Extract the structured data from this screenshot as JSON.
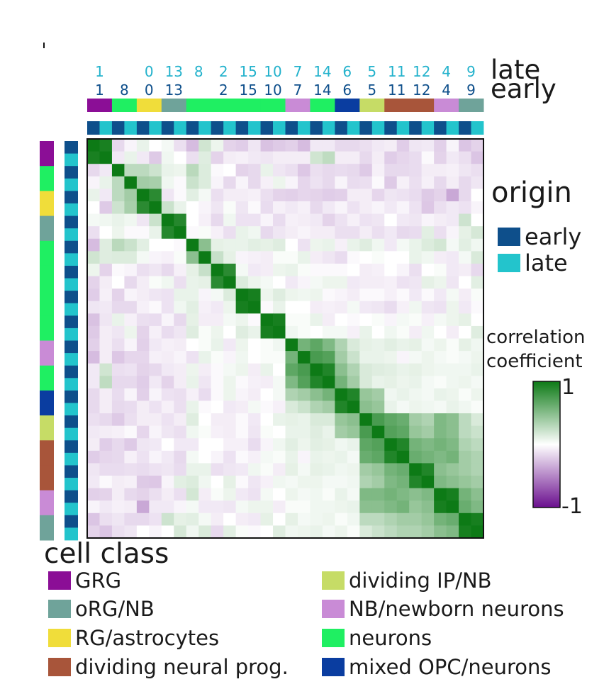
{
  "chart_data": {
    "type": "heatmap",
    "row_label_late": "late",
    "row_label_early": "early",
    "columns": [
      {
        "late": "1",
        "early": "1",
        "cell_class": "GRG"
      },
      {
        "late": "",
        "early": "8",
        "cell_class": "neurons"
      },
      {
        "late": "0",
        "early": "0",
        "cell_class": "RG/astrocytes"
      },
      {
        "late": "13",
        "early": "13",
        "cell_class": "oRG/NB"
      },
      {
        "late": "8",
        "early": "",
        "cell_class": "neurons"
      },
      {
        "late": "2",
        "early": "2",
        "cell_class": "neurons"
      },
      {
        "late": "15",
        "early": "15",
        "cell_class": "neurons"
      },
      {
        "late": "10",
        "early": "10",
        "cell_class": "neurons"
      },
      {
        "late": "7",
        "early": "7",
        "cell_class": "NB/newborn neurons"
      },
      {
        "late": "14",
        "early": "14",
        "cell_class": "neurons"
      },
      {
        "late": "6",
        "early": "6",
        "cell_class": "mixed OPC/neurons"
      },
      {
        "late": "5",
        "early": "5",
        "cell_class": "dividing IP/NB"
      },
      {
        "late": "11",
        "early": "11",
        "cell_class": "dividing neural prog."
      },
      {
        "late": "12",
        "early": "12",
        "cell_class": "dividing neural prog."
      },
      {
        "late": "4",
        "early": "4",
        "cell_class": "NB/newborn neurons"
      },
      {
        "late": "9",
        "early": "9",
        "cell_class": "oRG/NB"
      }
    ],
    "origin_order": [
      "early",
      "late"
    ],
    "value_range": [
      -1,
      1
    ],
    "values": [
      [
        1.0,
        0.94,
        -0.1,
        -0.02,
        0.05,
        0.0,
        0.02,
        -0.08,
        -0.2,
        0.13,
        0.04,
        -0.12,
        -0.14,
        -0.06,
        -0.18,
        -0.15,
        -0.13,
        -0.2,
        -0.05,
        -0.05,
        -0.1,
        -0.1,
        -0.08,
        -0.05,
        -0.04,
        -0.14,
        -0.06,
        -0.05,
        -0.13,
        -0.02,
        -0.17,
        -0.12
      ],
      [
        0.94,
        1.0,
        -0.05,
        0.05,
        -0.05,
        -0.15,
        0.03,
        0.0,
        -0.08,
        0.08,
        -0.12,
        -0.04,
        -0.03,
        -0.05,
        -0.06,
        -0.04,
        -0.04,
        -0.04,
        0.13,
        0.19,
        -0.04,
        -0.04,
        -0.1,
        -0.04,
        -0.14,
        -0.11,
        -0.09,
        -0.01,
        -0.12,
        -0.05,
        -0.08,
        -0.17
      ],
      [
        -0.1,
        -0.05,
        1.0,
        0.2,
        0.2,
        0.14,
        0.05,
        0.04,
        0.21,
        0.09,
        -0.01,
        0.0,
        -0.12,
        -0.1,
        0.05,
        -0.06,
        -0.08,
        -0.16,
        -0.08,
        -0.1,
        -0.09,
        -0.1,
        -0.15,
        -0.03,
        -0.1,
        -0.1,
        -0.09,
        -0.04,
        -0.04,
        -0.03,
        -0.06,
        -0.08
      ],
      [
        -0.02,
        0.05,
        0.2,
        1.0,
        0.3,
        0.28,
        0.03,
        -0.01,
        0.15,
        0.09,
        -0.02,
        -0.1,
        -0.02,
        -0.1,
        -0.03,
        0.04,
        -0.02,
        -0.11,
        -0.07,
        -0.1,
        -0.02,
        -0.09,
        -0.08,
        -0.01,
        -0.15,
        -0.03,
        -0.08,
        -0.03,
        -0.1,
        -0.04,
        -0.1,
        -0.06
      ],
      [
        0.05,
        -0.05,
        0.2,
        0.3,
        1.0,
        0.85,
        -0.06,
        -0.01,
        0.07,
        0.02,
        -0.08,
        -0.04,
        -0.04,
        -0.03,
        -0.08,
        -0.12,
        -0.13,
        -0.11,
        -0.12,
        -0.14,
        -0.13,
        -0.04,
        -0.04,
        -0.11,
        -0.06,
        -0.07,
        -0.09,
        -0.15,
        -0.12,
        -0.28,
        -0.1,
        0.0
      ],
      [
        0.0,
        -0.15,
        0.14,
        0.28,
        0.85,
        1.0,
        0.15,
        0.05,
        0.0,
        -0.02,
        -0.06,
        0.01,
        -0.06,
        -0.01,
        -0.09,
        -0.03,
        -0.05,
        -0.03,
        -0.1,
        -0.05,
        -0.02,
        -0.07,
        -0.04,
        -0.02,
        -0.05,
        -0.02,
        -0.07,
        -0.16,
        -0.08,
        -0.05,
        -0.07,
        -0.02
      ],
      [
        0.02,
        0.03,
        0.05,
        0.03,
        -0.06,
        0.15,
        1.0,
        0.88,
        0.0,
        -0.03,
        -0.1,
        0.03,
        -0.07,
        -0.07,
        -0.02,
        -0.09,
        -0.03,
        -0.04,
        -0.05,
        -0.12,
        -0.07,
        -0.03,
        -0.07,
        -0.06,
        0.0,
        -0.05,
        -0.06,
        -0.02,
        -0.04,
        -0.05,
        0.14,
        0.0
      ],
      [
        -0.08,
        0.0,
        0.04,
        -0.01,
        -0.01,
        0.05,
        0.88,
        1.0,
        -0.01,
        0.01,
        -0.03,
        -0.08,
        0.05,
        0.03,
        -0.1,
        -0.06,
        -0.04,
        -0.02,
        -0.04,
        -0.04,
        -0.08,
        -0.08,
        -0.04,
        -0.08,
        -0.05,
        -0.1,
        -0.09,
        0.07,
        -0.08,
        -0.02,
        0.06,
        0.11
      ],
      [
        -0.2,
        0.08,
        0.21,
        0.15,
        0.07,
        0.0,
        0.0,
        -0.01,
        1.0,
        0.4,
        0.06,
        0.05,
        0.05,
        0.07,
        0.06,
        0.08,
        0.0,
        -0.07,
        0.04,
        0.05,
        -0.03,
        0.05,
        0.08,
        0.03,
        -0.05,
        0.02,
        0.05,
        0.09,
        0.12,
        0.02,
        0.07,
        0.03
      ],
      [
        0.13,
        0.08,
        0.09,
        0.09,
        0.02,
        -0.02,
        -0.03,
        0.01,
        0.4,
        1.0,
        0.16,
        0.06,
        -0.02,
        -0.03,
        -0.04,
        0.01,
        0.01,
        0.05,
        -0.04,
        -0.06,
        -0.09,
        -0.01,
        0.0,
        0.01,
        0.0,
        0.0,
        0.05,
        0.03,
        -0.04,
        -0.05,
        0.02,
        0.1
      ],
      [
        0.04,
        -0.12,
        -0.01,
        -0.02,
        -0.08,
        -0.06,
        -0.1,
        -0.03,
        0.06,
        0.16,
        1.0,
        0.85,
        0.02,
        -0.05,
        -0.04,
        0.04,
        0.05,
        0.01,
        -0.01,
        -0.01,
        -0.01,
        0.0,
        -0.04,
        -0.03,
        0.0,
        -0.02,
        -0.08,
        0.0,
        0.01,
        -0.05,
        -0.04,
        -0.1
      ],
      [
        -0.12,
        -0.04,
        0.0,
        -0.1,
        -0.04,
        0.01,
        0.03,
        -0.08,
        0.05,
        0.06,
        0.85,
        1.0,
        0.09,
        0.04,
        0.02,
        0.0,
        -0.05,
        -0.02,
        0.02,
        0.04,
        0.04,
        -0.05,
        -0.04,
        -0.04,
        -0.03,
        -0.07,
        -0.06,
        0.06,
        0.04,
        -0.06,
        0.0,
        0.07
      ],
      [
        -0.14,
        -0.03,
        -0.12,
        -0.02,
        -0.04,
        -0.06,
        -0.07,
        0.05,
        0.05,
        -0.02,
        0.02,
        0.09,
        1.0,
        0.95,
        0.04,
        0.08,
        0.04,
        0.03,
        0.04,
        -0.01,
        -0.02,
        -0.04,
        -0.01,
        -0.01,
        -0.03,
        -0.01,
        -0.05,
        -0.01,
        -0.05,
        0.02,
        -0.04,
        0.01
      ],
      [
        -0.06,
        -0.05,
        -0.1,
        -0.1,
        -0.03,
        -0.01,
        -0.07,
        0.03,
        0.07,
        -0.03,
        -0.05,
        0.04,
        0.95,
        1.0,
        -0.01,
        0.05,
        0.0,
        0.0,
        -0.04,
        -0.03,
        -0.04,
        0.02,
        -0.05,
        -0.06,
        -0.09,
        -0.03,
        0.03,
        -0.06,
        -0.07,
        0.04,
        -0.05,
        -0.01
      ],
      [
        -0.18,
        -0.06,
        0.05,
        -0.03,
        -0.08,
        -0.09,
        -0.02,
        -0.1,
        0.06,
        -0.04,
        -0.04,
        0.02,
        0.04,
        -0.01,
        1.0,
        0.95,
        0.01,
        0.01,
        0.05,
        -0.04,
        0.0,
        -0.01,
        0.0,
        0.01,
        -0.02,
        0.02,
        0.01,
        -0.03,
        0.02,
        0.04,
        0.06,
        0.0
      ],
      [
        -0.15,
        -0.04,
        -0.06,
        0.04,
        -0.12,
        -0.03,
        -0.09,
        -0.06,
        0.08,
        0.01,
        0.04,
        0.0,
        0.08,
        0.05,
        0.95,
        1.0,
        0.03,
        0.01,
        0.0,
        0.02,
        0.02,
        -0.03,
        0.05,
        0.0,
        0.03,
        0.01,
        -0.04,
        0.03,
        0.0,
        -0.04,
        0.0,
        0.08
      ],
      [
        -0.13,
        -0.04,
        -0.08,
        -0.02,
        -0.13,
        -0.05,
        -0.03,
        -0.04,
        0.0,
        0.01,
        0.05,
        -0.05,
        0.04,
        0.0,
        0.01,
        0.03,
        1.0,
        0.5,
        0.6,
        0.45,
        0.25,
        0.1,
        0.06,
        0.05,
        0.07,
        0.05,
        0.06,
        0.02,
        0.04,
        0.01,
        0.06,
        0.03
      ],
      [
        -0.2,
        -0.04,
        -0.16,
        -0.11,
        -0.11,
        -0.03,
        -0.04,
        -0.02,
        -0.07,
        0.05,
        0.01,
        -0.02,
        0.03,
        0.0,
        0.01,
        0.01,
        0.5,
        1.0,
        0.7,
        0.65,
        0.3,
        0.15,
        0.05,
        0.05,
        0.04,
        -0.02,
        0.02,
        0.04,
        0.02,
        0.01,
        0.02,
        0.04
      ],
      [
        -0.05,
        0.13,
        -0.08,
        -0.07,
        -0.12,
        -0.1,
        -0.05,
        -0.04,
        0.04,
        -0.04,
        -0.01,
        0.02,
        0.04,
        -0.04,
        0.05,
        0.0,
        0.6,
        0.7,
        1.0,
        0.9,
        0.4,
        0.25,
        0.1,
        0.08,
        0.07,
        0.05,
        0.06,
        0.04,
        0.03,
        0.03,
        0.03,
        0.05
      ],
      [
        -0.05,
        0.19,
        -0.1,
        -0.1,
        -0.14,
        -0.05,
        -0.12,
        -0.04,
        0.05,
        -0.06,
        -0.01,
        0.04,
        -0.01,
        -0.03,
        -0.04,
        0.02,
        0.45,
        0.65,
        0.9,
        1.0,
        0.5,
        0.3,
        0.1,
        0.05,
        0.06,
        0.04,
        0.05,
        0.02,
        0.01,
        0.03,
        0.04,
        0.02
      ],
      [
        -0.1,
        -0.04,
        -0.09,
        -0.02,
        -0.13,
        -0.02,
        -0.07,
        -0.08,
        -0.03,
        -0.09,
        -0.01,
        0.04,
        -0.02,
        -0.04,
        0.0,
        0.02,
        0.25,
        0.3,
        0.4,
        0.5,
        1.0,
        0.9,
        0.35,
        0.3,
        0.03,
        0.05,
        0.03,
        0.02,
        0.05,
        0.04,
        0.01,
        0.04
      ],
      [
        -0.1,
        -0.04,
        -0.1,
        -0.09,
        -0.04,
        -0.07,
        -0.03,
        -0.08,
        0.05,
        -0.01,
        0.0,
        -0.05,
        -0.04,
        0.02,
        -0.01,
        -0.03,
        0.1,
        0.15,
        0.25,
        0.3,
        0.9,
        1.0,
        0.4,
        0.35,
        0.05,
        0.02,
        0.04,
        0.03,
        0.02,
        0.05,
        0.03,
        0.01
      ],
      [
        -0.08,
        -0.1,
        -0.15,
        -0.08,
        -0.04,
        -0.04,
        -0.07,
        -0.04,
        0.08,
        0.0,
        -0.04,
        -0.04,
        -0.01,
        -0.05,
        0.0,
        0.05,
        0.06,
        0.05,
        0.1,
        0.1,
        0.35,
        0.4,
        1.0,
        0.7,
        0.6,
        0.55,
        0.3,
        0.25,
        0.45,
        0.4,
        0.2,
        0.1
      ],
      [
        -0.05,
        -0.04,
        -0.03,
        -0.01,
        -0.11,
        -0.02,
        -0.06,
        -0.08,
        0.03,
        0.01,
        -0.03,
        -0.04,
        -0.01,
        -0.06,
        0.01,
        0.0,
        0.05,
        0.05,
        0.08,
        0.05,
        0.3,
        0.35,
        0.7,
        1.0,
        0.65,
        0.6,
        0.35,
        0.3,
        0.45,
        0.4,
        0.2,
        0.15
      ],
      [
        -0.04,
        -0.14,
        -0.1,
        -0.15,
        -0.06,
        -0.05,
        0.0,
        -0.05,
        -0.05,
        0.0,
        0.0,
        -0.03,
        -0.03,
        -0.09,
        -0.02,
        0.03,
        0.07,
        0.04,
        0.07,
        0.06,
        0.03,
        0.05,
        0.6,
        0.65,
        1.0,
        0.9,
        0.5,
        0.45,
        0.5,
        0.45,
        0.25,
        0.2
      ],
      [
        -0.14,
        -0.11,
        -0.1,
        -0.03,
        -0.07,
        -0.02,
        -0.05,
        -0.1,
        0.02,
        0.0,
        -0.02,
        -0.07,
        -0.01,
        -0.03,
        0.02,
        0.01,
        0.05,
        -0.02,
        0.05,
        0.04,
        0.05,
        0.02,
        0.55,
        0.6,
        0.9,
        1.0,
        0.55,
        0.5,
        0.45,
        0.5,
        0.3,
        0.25
      ],
      [
        -0.06,
        -0.09,
        -0.09,
        -0.08,
        -0.09,
        -0.07,
        -0.06,
        -0.09,
        0.05,
        0.05,
        -0.08,
        -0.06,
        -0.05,
        0.03,
        0.01,
        -0.04,
        0.06,
        0.02,
        0.06,
        0.05,
        0.03,
        0.04,
        0.3,
        0.35,
        0.5,
        0.55,
        1.0,
        0.9,
        0.4,
        0.35,
        0.3,
        0.25
      ],
      [
        -0.05,
        -0.01,
        -0.04,
        -0.03,
        -0.15,
        -0.16,
        -0.02,
        0.07,
        0.09,
        0.03,
        0.0,
        0.06,
        -0.01,
        -0.06,
        -0.03,
        0.03,
        0.02,
        0.04,
        0.04,
        0.02,
        0.02,
        0.03,
        0.25,
        0.3,
        0.45,
        0.5,
        0.9,
        1.0,
        0.45,
        0.4,
        0.35,
        0.3
      ],
      [
        -0.13,
        -0.12,
        -0.04,
        -0.1,
        -0.12,
        -0.08,
        -0.04,
        -0.08,
        0.12,
        -0.04,
        0.01,
        0.04,
        -0.05,
        -0.07,
        0.02,
        0.0,
        0.04,
        0.02,
        0.03,
        0.01,
        0.05,
        0.02,
        0.45,
        0.45,
        0.5,
        0.45,
        0.4,
        0.45,
        1.0,
        0.95,
        0.5,
        0.4
      ],
      [
        -0.02,
        -0.05,
        -0.03,
        -0.04,
        -0.28,
        -0.05,
        -0.05,
        -0.02,
        0.02,
        -0.05,
        -0.05,
        -0.06,
        0.02,
        0.04,
        0.04,
        -0.04,
        0.01,
        0.01,
        0.03,
        0.03,
        0.04,
        0.05,
        0.4,
        0.4,
        0.45,
        0.5,
        0.35,
        0.4,
        0.95,
        1.0,
        0.55,
        0.45
      ],
      [
        -0.17,
        -0.08,
        -0.06,
        -0.1,
        -0.1,
        -0.07,
        0.14,
        0.06,
        0.07,
        0.02,
        -0.04,
        0.0,
        -0.04,
        -0.05,
        0.06,
        0.0,
        0.06,
        0.02,
        0.03,
        0.04,
        0.01,
        0.03,
        0.2,
        0.2,
        0.25,
        0.3,
        0.3,
        0.35,
        0.5,
        0.55,
        1.0,
        0.95
      ],
      [
        -0.12,
        -0.17,
        -0.08,
        -0.06,
        0.0,
        -0.02,
        0.0,
        0.11,
        0.03,
        0.1,
        -0.1,
        0.07,
        0.01,
        -0.01,
        0.0,
        0.08,
        0.03,
        0.04,
        0.05,
        0.02,
        0.04,
        0.01,
        0.1,
        0.15,
        0.2,
        0.25,
        0.25,
        0.3,
        0.4,
        0.45,
        0.95,
        1.0
      ]
    ],
    "legend": {
      "origin_title": "origin",
      "origin": [
        {
          "label": "early",
          "color": "#0e4f8b"
        },
        {
          "label": "late",
          "color": "#23c4cc"
        }
      ],
      "colorbar_title": [
        "correlation",
        "coefficient"
      ],
      "colorbar_max_label": "1",
      "colorbar_min_label": "-1",
      "colorbar_colors": [
        "#6a0e8e",
        "#ffffff",
        "#0d7a16"
      ],
      "cell_class_title": "cell class",
      "cell_class": [
        {
          "label": "GRG",
          "color": "#8b0e96"
        },
        {
          "label": "oRG/NB",
          "color": "#6fa39a"
        },
        {
          "label": "RG/astrocytes",
          "color": "#f0dd3a"
        },
        {
          "label": "dividing neural prog.",
          "color": "#a8553a"
        },
        {
          "label": "dividing IP/NB",
          "color": "#c6dc66"
        },
        {
          "label": "NB/newborn neurons",
          "color": "#c98bd6"
        },
        {
          "label": "neurons",
          "color": "#1fef62"
        },
        {
          "label": "mixed OPC/neurons",
          "color": "#0a3da0"
        }
      ]
    },
    "header_colors": {
      "late_numbers": "#23b2cc",
      "early_numbers": "#0e4f8b"
    }
  }
}
